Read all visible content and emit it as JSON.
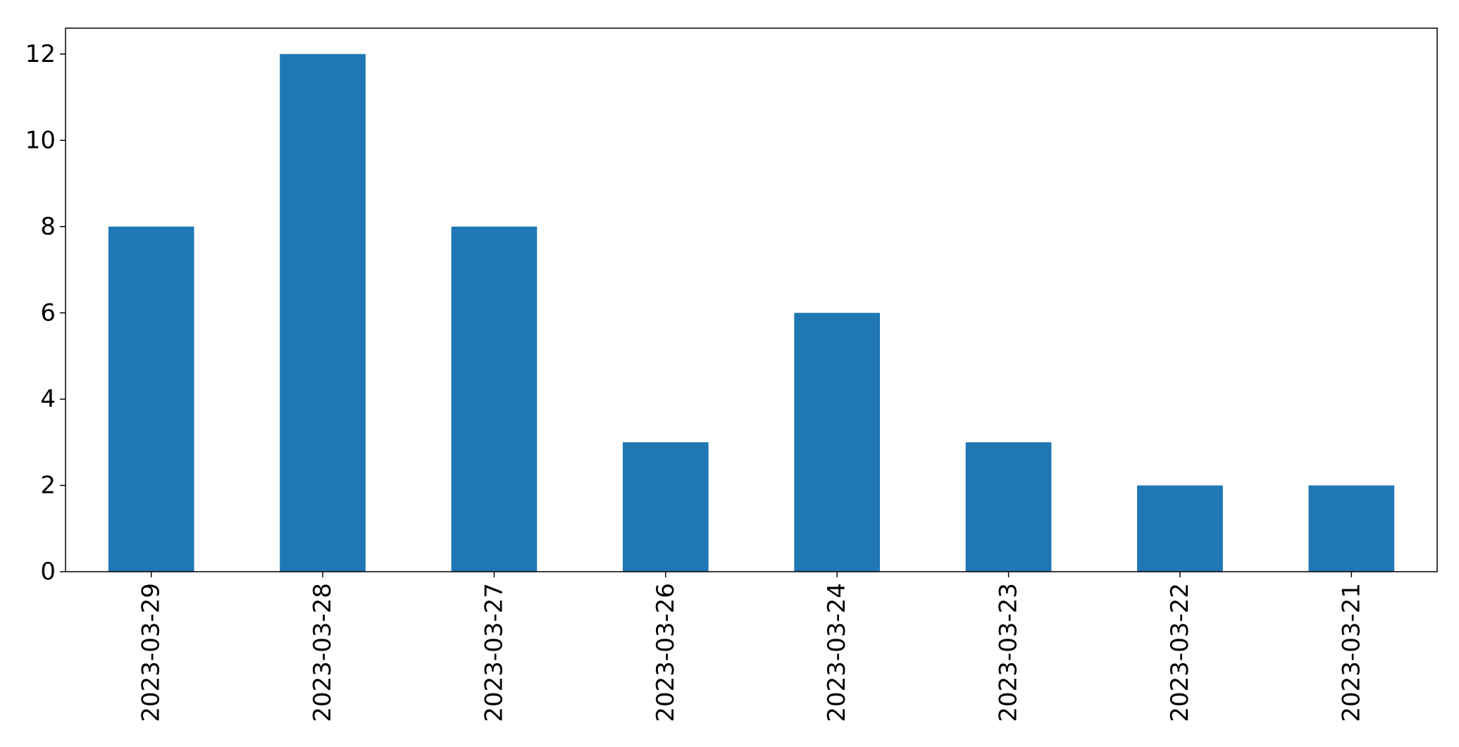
{
  "chart_data": {
    "type": "bar",
    "categories": [
      "2023-03-29",
      "2023-03-28",
      "2023-03-27",
      "2023-03-26",
      "2023-03-24",
      "2023-03-23",
      "2023-03-22",
      "2023-03-21"
    ],
    "values": [
      8,
      12,
      8,
      3,
      6,
      3,
      2,
      2
    ],
    "ylim": [
      0,
      12.6
    ],
    "yticks": [
      0,
      2,
      4,
      6,
      8,
      10,
      12
    ],
    "title": "",
    "xlabel": "",
    "ylabel": "",
    "grid": false,
    "bar_color": "#1f77b4"
  }
}
